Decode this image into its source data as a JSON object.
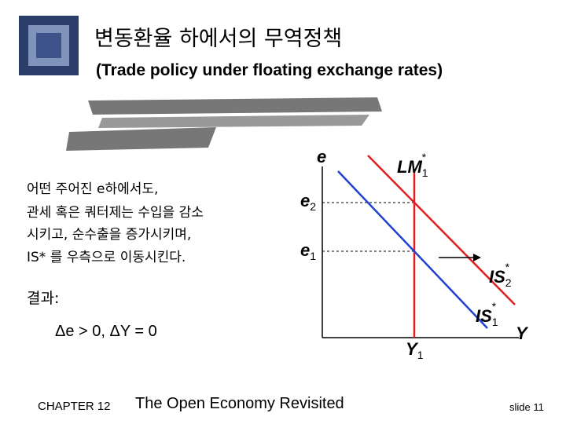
{
  "header": {
    "title": "변동환율 하에서의 무역정책",
    "subtitle": "(Trade policy under floating exchange rates)"
  },
  "body": {
    "lines": [
      "어떤 주어진 e하에서도,",
      "관세 혹은 쿼터제는 수입을 감소",
      "시키고, 순수출을 증가시키며,",
      "IS* 를 우측으로 이동시킨다."
    ],
    "result_label": "결과:",
    "result": "Δe > 0,  ΔY = 0"
  },
  "diagram": {
    "y_axis": "e",
    "x_axis": "Y",
    "lm": {
      "main": "LM",
      "sub": "1",
      "sup": "*"
    },
    "is2": {
      "main": "IS",
      "sub": "2",
      "sup": "*"
    },
    "is1": {
      "main": "IS",
      "sub": "1",
      "sup": "*"
    },
    "e2": {
      "main": "e",
      "sub": "2"
    },
    "e1": {
      "main": "e",
      "sub": "1"
    },
    "y1": {
      "main": "Y",
      "sub": "1"
    }
  },
  "footer": {
    "chapter": "CHAPTER 12",
    "book": "The Open Economy Revisited",
    "slide": "slide 11"
  }
}
